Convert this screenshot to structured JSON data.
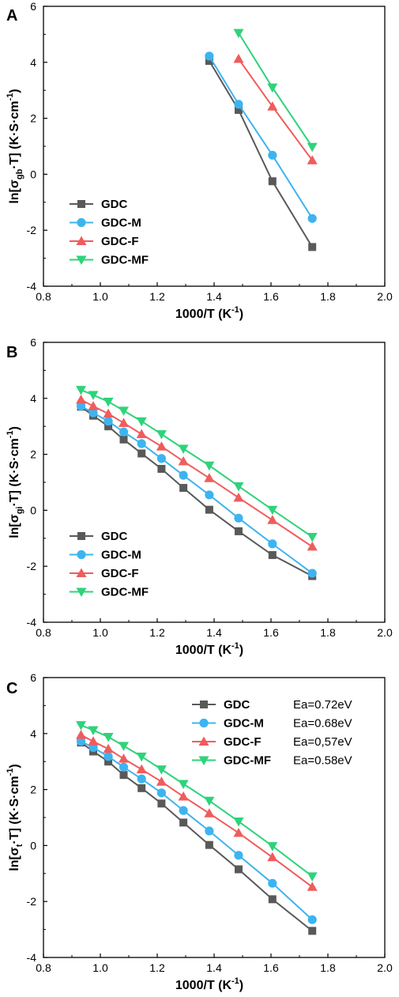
{
  "colors": {
    "GDC": "#595959",
    "GDC-M": "#3db4ef",
    "GDC-F": "#f05c5c",
    "GDC-MF": "#2ed37a"
  },
  "markers": {
    "GDC": "square",
    "GDC-M": "circle",
    "GDC-F": "triangle-up",
    "GDC-MF": "triangle-down"
  },
  "chart_data": [
    {
      "panel": "A",
      "type": "line",
      "title": "",
      "xlabel": "1000/T (K",
      "xlabel_sup": "-1",
      "xlabel_end": ")",
      "ylabel_pre": "ln[σ",
      "ylabel_sub": "gb",
      "ylabel_post": "·T] (K·S·cm",
      "ylabel_sup": "-1",
      "ylabel_end": ")",
      "xlim": [
        0.8,
        2.0
      ],
      "ylim": [
        -4,
        6
      ],
      "xticks": [
        "0.8",
        "1.0",
        "1.2",
        "1.4",
        "1.6",
        "1.8",
        "2.0"
      ],
      "yticks": [
        "-4",
        "-2",
        "0",
        "2",
        "4",
        "6"
      ],
      "legend_position": "lower-left",
      "series": [
        {
          "name": "GDC",
          "x": [
            1.383,
            1.486,
            1.605,
            1.745
          ],
          "y": [
            4.05,
            2.3,
            -0.25,
            -2.6
          ]
        },
        {
          "name": "GDC-M",
          "x": [
            1.383,
            1.486,
            1.605,
            1.745
          ],
          "y": [
            4.22,
            2.5,
            0.68,
            -1.58
          ]
        },
        {
          "name": "GDC-F",
          "x": [
            1.486,
            1.605,
            1.745
          ],
          "y": [
            4.12,
            2.42,
            0.5
          ]
        },
        {
          "name": "GDC-MF",
          "x": [
            1.486,
            1.605,
            1.745
          ],
          "y": [
            5.05,
            3.1,
            0.98
          ]
        }
      ]
    },
    {
      "panel": "B",
      "type": "line",
      "title": "",
      "xlabel": "1000/T (K",
      "xlabel_sup": "-1",
      "xlabel_end": ")",
      "ylabel_pre": "ln[σ",
      "ylabel_sub": "gi",
      "ylabel_post": "·T] (K·S·cm",
      "ylabel_sup": "-1",
      "ylabel_end": ")",
      "xlim": [
        0.8,
        2.0
      ],
      "ylim": [
        -4,
        6
      ],
      "xticks": [
        "0.8",
        "1.0",
        "1.2",
        "1.4",
        "1.6",
        "1.8",
        "2.0"
      ],
      "yticks": [
        "-4",
        "-2",
        "0",
        "2",
        "4",
        "6"
      ],
      "legend_position": "lower-left",
      "series": [
        {
          "name": "GDC",
          "x": [
            0.932,
            0.975,
            1.028,
            1.082,
            1.145,
            1.215,
            1.292,
            1.383,
            1.486,
            1.605,
            1.745
          ],
          "y": [
            3.7,
            3.38,
            3.0,
            2.53,
            2.03,
            1.48,
            0.8,
            0.02,
            -0.75,
            -1.6,
            -2.35
          ]
        },
        {
          "name": "GDC-M",
          "x": [
            0.932,
            0.975,
            1.028,
            1.082,
            1.145,
            1.215,
            1.292,
            1.383,
            1.486,
            1.605,
            1.745
          ],
          "y": [
            3.72,
            3.48,
            3.18,
            2.8,
            2.38,
            1.85,
            1.25,
            0.55,
            -0.28,
            -1.2,
            -2.25
          ]
        },
        {
          "name": "GDC-F",
          "x": [
            0.932,
            0.975,
            1.028,
            1.082,
            1.145,
            1.215,
            1.292,
            1.383,
            1.486,
            1.605,
            1.745
          ],
          "y": [
            3.95,
            3.72,
            3.45,
            3.12,
            2.72,
            2.28,
            1.75,
            1.15,
            0.45,
            -0.35,
            -1.3
          ]
        },
        {
          "name": "GDC-MF",
          "x": [
            0.932,
            0.975,
            1.028,
            1.082,
            1.145,
            1.215,
            1.292,
            1.383,
            1.486,
            1.605,
            1.745
          ],
          "y": [
            4.3,
            4.12,
            3.88,
            3.56,
            3.18,
            2.72,
            2.2,
            1.6,
            0.86,
            0.02,
            -0.95
          ]
        }
      ]
    },
    {
      "panel": "C",
      "type": "line",
      "title": "",
      "xlabel": "1000/T (K",
      "xlabel_sup": "-1",
      "xlabel_end": ")",
      "ylabel_pre": "ln[σ",
      "ylabel_sub": "t",
      "ylabel_post": "·T] (K·S·cm",
      "ylabel_sup": "-1",
      "ylabel_end": ")",
      "xlim": [
        0.8,
        2.0
      ],
      "ylim": [
        -4,
        6
      ],
      "xticks": [
        "0.8",
        "1.0",
        "1.2",
        "1.4",
        "1.6",
        "1.8",
        "2.0"
      ],
      "yticks": [
        "-4",
        "-2",
        "0",
        "2",
        "4",
        "6"
      ],
      "legend_position": "top-right",
      "series": [
        {
          "name": "GDC",
          "ea": "Ea=0.72eV",
          "x": [
            0.932,
            0.975,
            1.028,
            1.082,
            1.145,
            1.215,
            1.292,
            1.383,
            1.486,
            1.605,
            1.745
          ],
          "y": [
            3.68,
            3.36,
            3.0,
            2.52,
            2.05,
            1.5,
            0.82,
            0.02,
            -0.85,
            -1.92,
            -3.05
          ]
        },
        {
          "name": "GDC-M",
          "ea": "Ea=0.68eV",
          "x": [
            0.932,
            0.975,
            1.028,
            1.082,
            1.145,
            1.215,
            1.292,
            1.383,
            1.486,
            1.605,
            1.745
          ],
          "y": [
            3.72,
            3.5,
            3.18,
            2.8,
            2.38,
            1.88,
            1.25,
            0.52,
            -0.35,
            -1.35,
            -2.65
          ]
        },
        {
          "name": "GDC-F",
          "ea": "Ea=0,57eV",
          "x": [
            0.932,
            0.975,
            1.028,
            1.082,
            1.145,
            1.215,
            1.292,
            1.383,
            1.486,
            1.605,
            1.745
          ],
          "y": [
            3.95,
            3.72,
            3.45,
            3.1,
            2.72,
            2.28,
            1.75,
            1.15,
            0.45,
            -0.42,
            -1.48
          ]
        },
        {
          "name": "GDC-MF",
          "ea": "Ea=0.58eV",
          "x": [
            0.932,
            0.975,
            1.028,
            1.082,
            1.145,
            1.215,
            1.292,
            1.383,
            1.486,
            1.605,
            1.745
          ],
          "y": [
            4.3,
            4.12,
            3.88,
            3.56,
            3.18,
            2.72,
            2.2,
            1.6,
            0.86,
            -0.02,
            -1.1
          ]
        }
      ]
    }
  ]
}
